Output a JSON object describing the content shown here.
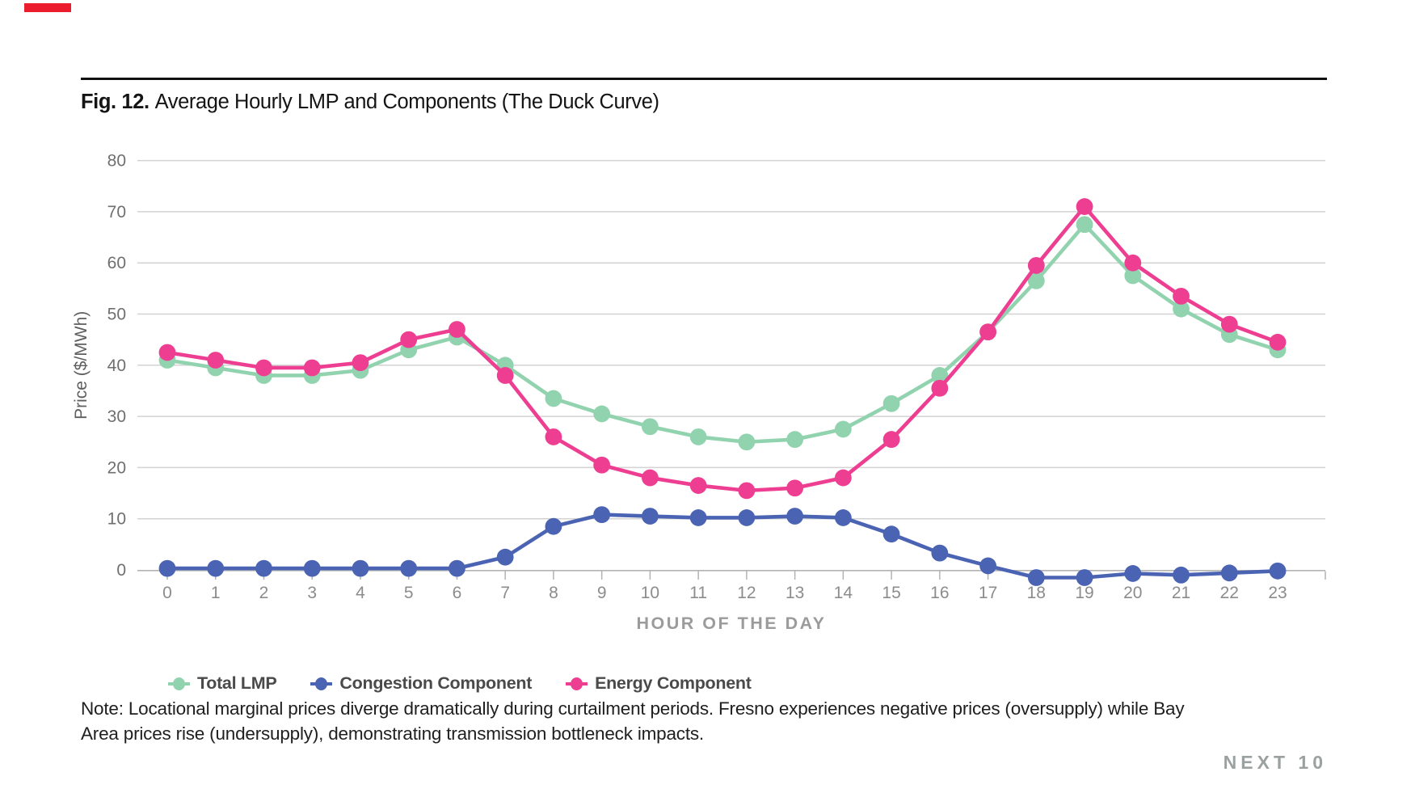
{
  "brand": {
    "red_bar": "#ea1c2d",
    "next10_label": "NEXT 10"
  },
  "figure": {
    "fig_label": "Fig. 12.",
    "title": "Average Hourly LMP and Components (The Duck Curve)"
  },
  "legend": {
    "items": [
      {
        "label": "Total LMP",
        "color": "#92d3af"
      },
      {
        "label": "Congestion Component",
        "color": "#4a63b3"
      },
      {
        "label": "Energy Component",
        "color": "#ee3e92"
      }
    ]
  },
  "note": {
    "lines": [
      "Note: Locational marginal prices diverge dramatically during curtailment periods. Fresno experiences negative prices (oversupply) while Bay",
      "Area prices rise (undersupply), demonstrating transmission bottleneck impacts."
    ]
  },
  "chart_data": {
    "type": "line",
    "title": "Average Hourly LMP and Components (The Duck Curve)",
    "xlabel": "HOUR OF THE DAY",
    "ylabel": "Price ($/MWh)",
    "x": [
      0,
      1,
      2,
      3,
      4,
      5,
      6,
      7,
      8,
      9,
      10,
      11,
      12,
      13,
      14,
      15,
      16,
      17,
      18,
      19,
      20,
      21,
      22,
      23
    ],
    "ylim": [
      0,
      80
    ],
    "ytick_step": 10,
    "grid": "horizontal",
    "legend_position": "bottom-left",
    "series": [
      {
        "name": "Total LMP",
        "color": "#92d3af",
        "values": [
          41,
          39.5,
          38,
          38,
          39,
          43,
          45.5,
          40,
          33.5,
          30.5,
          28,
          26,
          25,
          25.5,
          27.5,
          32.5,
          38,
          46.5,
          56.5,
          67.5,
          57.5,
          51,
          46,
          43
        ]
      },
      {
        "name": "Congestion Component",
        "color": "#4a63b3",
        "values": [
          0.3,
          0.3,
          0.3,
          0.3,
          0.3,
          0.3,
          0.3,
          2.5,
          8.5,
          10.8,
          10.5,
          10.2,
          10.2,
          10.5,
          10.2,
          7,
          3.3,
          0.8,
          -1.5,
          -1.5,
          -0.7,
          -1,
          -0.6,
          -0.2
        ]
      },
      {
        "name": "Energy Component",
        "color": "#ee3e92",
        "values": [
          42.5,
          41,
          39.5,
          39.5,
          40.5,
          45,
          47,
          38,
          26,
          20.5,
          18,
          16.5,
          15.5,
          16,
          18,
          25.5,
          35.5,
          46.5,
          59.5,
          71,
          60,
          53.5,
          48,
          44.5
        ]
      }
    ],
    "axis_colors": {
      "gridline": "#d3d3d3",
      "axis_line": "#b3b3b3",
      "tick_label": "#8c8c8c",
      "y_tick_label": "#6f6f6f",
      "axis_title": "#9b9b9b",
      "y_axis_title": "#5e5e5e"
    }
  }
}
